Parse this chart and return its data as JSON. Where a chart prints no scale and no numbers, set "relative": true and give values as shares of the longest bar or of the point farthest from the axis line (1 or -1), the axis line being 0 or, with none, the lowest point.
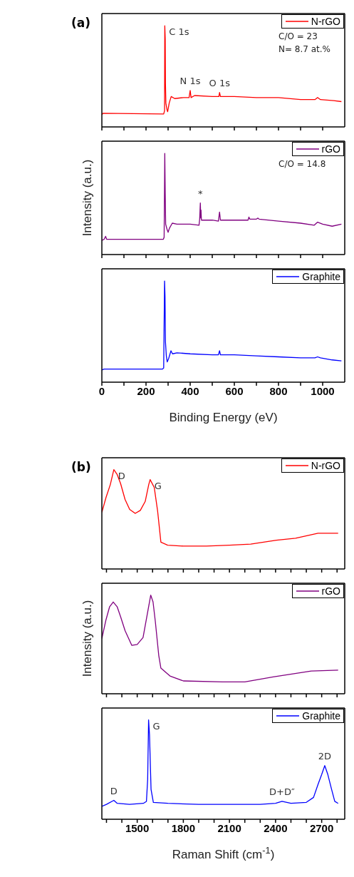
{
  "chart_data": [
    {
      "type": "line",
      "title": "(a)",
      "relative": true,
      "legend": "top right",
      "tick_labels": false,
      "xlim": [
        0,
        1100
      ],
      "xticks": [
        0,
        {
          "value": 100,
          "label": null
        },
        200,
        {
          "value": 300,
          "label": null
        },
        400,
        {
          "value": 500,
          "label": null
        },
        600,
        {
          "value": 700,
          "label": null
        },
        800,
        {
          "value": 900,
          "label": null
        },
        1000
      ],
      "series": [
        {
          "name": "N-rGO",
          "color": "#ff0000",
          "x": [
            0,
            5,
            280,
            284,
            285,
            287,
            288,
            290,
            295,
            298,
            305,
            314,
            330,
            370,
            395,
            400,
            404,
            420,
            500,
            530,
            533,
            537,
            600,
            700,
            800,
            900,
            965,
            977,
            990,
            1050,
            1085
          ],
          "values": [
            0.12,
            0.135,
            0.128,
            0.16,
            1,
            0.87,
            0.43,
            0.235,
            0.17,
            0.15,
            0.235,
            0.3,
            0.28,
            0.29,
            0.29,
            0.36,
            0.29,
            0.31,
            0.3,
            0.3,
            0.34,
            0.3,
            0.3,
            0.29,
            0.29,
            0.27,
            0.27,
            0.29,
            0.27,
            0.26,
            0.25
          ]
        }
      ],
      "annotations": [
        {
          "text": "C 1s",
          "x": 285,
          "y": 1
        },
        {
          "text": "N 1s",
          "x": 400,
          "y": 0.36
        },
        {
          "text": "O 1s",
          "x": 533,
          "y": 0.34
        },
        "C/O = 23",
        "N= 8.7 at.%"
      ]
    },
    {
      "type": "line",
      "relative": true,
      "legend": "top right",
      "tick_labels": false,
      "ylabel": "Intensity (a.u.)",
      "xlim": [
        0,
        1100
      ],
      "xticks": [
        0,
        {
          "value": 100,
          "label": null
        },
        200,
        {
          "value": 300,
          "label": null
        },
        400,
        {
          "value": 500,
          "label": null
        },
        600,
        {
          "value": 700,
          "label": null
        },
        800,
        {
          "value": 900,
          "label": null
        },
        1000
      ],
      "series": [
        {
          "name": "rGO",
          "color": "#800080",
          "x": [
            0,
            10,
            17,
            22,
            100,
            200,
            278,
            282,
            285,
            287,
            289,
            295,
            300,
            306,
            319,
            340,
            400,
            440,
            443,
            446,
            448,
            449,
            451,
            500,
            528,
            533,
            537,
            600,
            662,
            666,
            670,
            700,
            707,
            712,
            800,
            900,
            962,
            977,
            1000,
            1043,
            1085
          ],
          "values": [
            0.14,
            0.15,
            0.18,
            0.15,
            0.15,
            0.15,
            0.15,
            0.17,
            1,
            0.6,
            0.3,
            0.25,
            0.22,
            0.26,
            0.31,
            0.3,
            0.3,
            0.29,
            0.35,
            0.51,
            0.36,
            0.44,
            0.34,
            0.34,
            0.33,
            0.42,
            0.34,
            0.34,
            0.34,
            0.37,
            0.35,
            0.35,
            0.36,
            0.35,
            0.33,
            0.31,
            0.29,
            0.32,
            0.3,
            0.28,
            0.3
          ]
        }
      ],
      "annotations": [
        {
          "text": "*",
          "x": 446,
          "y": 0.51
        },
        "C/O = 14.8"
      ]
    },
    {
      "type": "line",
      "relative": true,
      "legend": "top right",
      "tick_labels": "x",
      "xlabel": "Binding Energy (eV)",
      "xlim": [
        0,
        1100
      ],
      "xticks": [
        0,
        {
          "value": 100,
          "label": null
        },
        200,
        {
          "value": 300,
          "label": null
        },
        400,
        {
          "value": 500,
          "label": null
        },
        600,
        {
          "value": 700,
          "label": null
        },
        800,
        {
          "value": 900,
          "label": null
        },
        1000
      ],
      "series": [
        {
          "name": "Graphite",
          "color": "#0000ff",
          "x": [
            0,
            10,
            100,
            200,
            275,
            280,
            284,
            286,
            288,
            292,
            296,
            302,
            313,
            320,
            340,
            400,
            500,
            528,
            533,
            537,
            600,
            700,
            800,
            900,
            965,
            977,
            990,
            1043,
            1085
          ],
          "values": [
            0.12,
            0.13,
            0.13,
            0.13,
            0.13,
            0.14,
            1,
            0.85,
            0.4,
            0.26,
            0.2,
            0.23,
            0.31,
            0.28,
            0.29,
            0.28,
            0.27,
            0.27,
            0.31,
            0.27,
            0.27,
            0.26,
            0.25,
            0.24,
            0.24,
            0.25,
            0.24,
            0.22,
            0.21
          ]
        }
      ]
    },
    {
      "type": "line",
      "title": "(b)",
      "relative": true,
      "legend": "top right",
      "tick_labels": false,
      "xlim": [
        1270,
        2850
      ],
      "xticks": [
        {
          "value": 1300,
          "label": null
        },
        {
          "value": 1400,
          "label": null
        },
        1500,
        {
          "value": 1600,
          "label": null
        },
        {
          "value": 1700,
          "label": null
        },
        1800,
        {
          "value": 1900,
          "label": null
        },
        {
          "value": 2000,
          "label": null
        },
        2100,
        {
          "value": 2200,
          "label": null
        },
        {
          "value": 2300,
          "label": null
        },
        2400,
        {
          "value": 2500,
          "label": null
        },
        {
          "value": 2600,
          "label": null
        },
        2700,
        {
          "value": 2800,
          "label": null
        }
      ],
      "series": [
        {
          "name": "N-rGO",
          "color": "#ff0000",
          "x": [
            1270,
            1297,
            1325,
            1348,
            1370,
            1392,
            1421,
            1451,
            1487,
            1520,
            1552,
            1575,
            1584,
            1611,
            1633,
            1654,
            1698,
            1800,
            1950,
            2100,
            2238,
            2406,
            2530,
            2676,
            2807
          ],
          "values": [
            0.57,
            0.72,
            0.85,
            1,
            0.95,
            0.86,
            0.7,
            0.6,
            0.56,
            0.59,
            0.68,
            0.85,
            0.9,
            0.82,
            0.58,
            0.27,
            0.24,
            0.23,
            0.23,
            0.24,
            0.25,
            0.29,
            0.31,
            0.36,
            0.36
          ]
        }
      ],
      "annotations": [
        {
          "text": "D",
          "x": 1348,
          "y": 1
        },
        {
          "text": "G",
          "x": 1584,
          "y": 0.9
        }
      ]
    },
    {
      "type": "line",
      "relative": true,
      "legend": "top right",
      "tick_labels": false,
      "ylabel": "Intensity (a.u.)",
      "xlim": [
        1270,
        2850
      ],
      "xticks": [
        {
          "value": 1300,
          "label": null
        },
        {
          "value": 1400,
          "label": null
        },
        1500,
        {
          "value": 1600,
          "label": null
        },
        {
          "value": 1700,
          "label": null
        },
        1800,
        {
          "value": 1900,
          "label": null
        },
        {
          "value": 2000,
          "label": null
        },
        2100,
        {
          "value": 2200,
          "label": null
        },
        {
          "value": 2300,
          "label": null
        },
        2400,
        {
          "value": 2500,
          "label": null
        },
        {
          "value": 2600,
          "label": null
        },
        2700,
        {
          "value": 2800,
          "label": null
        }
      ],
      "series": [
        {
          "name": "rGO",
          "color": "#800080",
          "x": [
            1270,
            1297,
            1320,
            1344,
            1370,
            1392,
            1421,
            1465,
            1500,
            1538,
            1567,
            1588,
            1603,
            1618,
            1640,
            1654,
            1713,
            1800,
            2056,
            2200,
            2384,
            2632,
            2807
          ],
          "values": [
            0.56,
            0.75,
            0.88,
            0.93,
            0.88,
            0.78,
            0.64,
            0.49,
            0.5,
            0.57,
            0.82,
            1,
            0.93,
            0.73,
            0.39,
            0.26,
            0.18,
            0.13,
            0.12,
            0.12,
            0.17,
            0.23,
            0.24
          ]
        }
      ]
    },
    {
      "type": "line",
      "relative": true,
      "legend": "top right",
      "tick_labels": "x",
      "xlabel": "Raman Shift (cm$^{-1}$)",
      "xlim": [
        1270,
        2850
      ],
      "xticks": [
        {
          "value": 1300,
          "label": null
        },
        {
          "value": 1400,
          "label": null
        },
        1500,
        {
          "value": 1600,
          "label": null
        },
        {
          "value": 1700,
          "label": null
        },
        1800,
        {
          "value": 1900,
          "label": null
        },
        {
          "value": 2000,
          "label": null
        },
        2100,
        {
          "value": 2200,
          "label": null
        },
        {
          "value": 2300,
          "label": null
        },
        2400,
        {
          "value": 2500,
          "label": null
        },
        {
          "value": 2600,
          "label": null
        },
        2700,
        {
          "value": 2800,
          "label": null
        }
      ],
      "series": [
        {
          "name": "Graphite",
          "color": "#0000ff",
          "x": [
            1270,
            1300,
            1348,
            1370,
            1450,
            1540,
            1560,
            1568,
            1574,
            1580,
            1590,
            1605,
            1700,
            1900,
            2100,
            2300,
            2400,
            2442,
            2500,
            2600,
            2647,
            2676,
            2700,
            2720,
            2740,
            2763,
            2785,
            2807
          ],
          "values": [
            0.13,
            0.15,
            0.19,
            0.16,
            0.15,
            0.16,
            0.18,
            0.4,
            1,
            0.85,
            0.3,
            0.17,
            0.16,
            0.15,
            0.15,
            0.15,
            0.16,
            0.18,
            0.16,
            0.17,
            0.22,
            0.35,
            0.45,
            0.54,
            0.45,
            0.31,
            0.18,
            0.16
          ]
        }
      ],
      "annotations": [
        {
          "text": "G",
          "x": 1574,
          "y": 1
        },
        {
          "text": "D",
          "x": 1348,
          "y": 0.19
        },
        {
          "text": "D+D″",
          "x": 2442,
          "y": 0.18
        },
        {
          "text": "2D",
          "x": 2720,
          "y": 0.54
        }
      ]
    }
  ]
}
